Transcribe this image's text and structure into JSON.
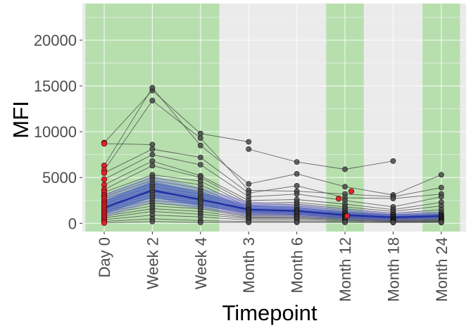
{
  "chart_data": {
    "type": "line",
    "title": "",
    "xlabel": "Timepoint",
    "ylabel": "MFI",
    "categories": [
      "Day 0",
      "Week 2",
      "Week 4",
      "Month 3",
      "Month 6",
      "Month 12",
      "Month 18",
      "Month 24"
    ],
    "ylim": [
      -900,
      24000
    ],
    "yticks": [
      0,
      5000,
      10000,
      15000,
      20000
    ],
    "grid": true,
    "legend": "none",
    "shaded_timepoints": [
      "Day 0",
      "Week 2",
      "Week 4",
      "Month 12",
      "Month 24"
    ],
    "colors": {
      "panel_background": "#ebebeb",
      "grid_major": "#ffffff",
      "grid_minor": "#f4f4f4",
      "shade": "#b7dfae",
      "individual_line": "#3a3a3a",
      "individual_point": "#4a4a4a",
      "highlight_point": "#e3242b",
      "trend_line": "#1f2fa3",
      "trend_band_inner": "#3955c4",
      "trend_band_outer": "#7f7fdc"
    },
    "trend": {
      "mean": [
        1700,
        3600,
        2600,
        1500,
        1350,
        900,
        650,
        800
      ],
      "inner_band": [
        [
          1000,
          2500
        ],
        [
          2800,
          4600
        ],
        [
          1900,
          3400
        ],
        [
          1100,
          2000
        ],
        [
          900,
          1800
        ],
        [
          550,
          1300
        ],
        [
          400,
          950
        ],
        [
          550,
          1100
        ]
      ],
      "outer_band": [
        [
          600,
          3200
        ],
        [
          2300,
          5200
        ],
        [
          1600,
          3900
        ],
        [
          800,
          2400
        ],
        [
          700,
          2100
        ],
        [
          350,
          1600
        ],
        [
          250,
          1150
        ],
        [
          400,
          1350
        ]
      ]
    },
    "subjects": [
      {
        "values": [
          8800,
          14500,
          9800,
          8900,
          null,
          null,
          null,
          null
        ]
      },
      {
        "values": [
          8700,
          8600,
          null,
          8100,
          6700,
          5900,
          6800,
          null
        ]
      },
      {
        "values": [
          6300,
          14800,
          8500,
          4300,
          5400,
          4000,
          3100,
          5300
        ]
      },
      {
        "values": [
          5800,
          13400,
          9300,
          3600,
          3500,
          3200,
          2900,
          3900
        ]
      },
      {
        "values": [
          5500,
          8100,
          7200,
          3300,
          4100,
          2800,
          2700,
          3200
        ]
      },
      {
        "values": [
          4800,
          7500,
          6400,
          2900,
          3200,
          2500,
          1800,
          2900
        ]
      },
      {
        "values": [
          4200,
          6800,
          5200,
          2500,
          2600,
          2100,
          1500,
          2300
        ]
      },
      {
        "values": [
          3700,
          6300,
          5000,
          2200,
          2300,
          1800,
          1300,
          1900
        ]
      },
      {
        "values": [
          3400,
          5300,
          4600,
          2000,
          2100,
          1600,
          1100,
          1500
        ]
      },
      {
        "values": [
          3100,
          5000,
          4200,
          1800,
          1900,
          1400,
          950,
          1200
        ]
      },
      {
        "values": [
          2900,
          4700,
          3800,
          1600,
          1700,
          1200,
          850,
          1000
        ]
      },
      {
        "values": [
          2700,
          4300,
          3500,
          1500,
          1500,
          1100,
          760,
          900
        ]
      },
      {
        "values": [
          2400,
          4000,
          3200,
          1400,
          1400,
          1000,
          680,
          820
        ]
      },
      {
        "values": [
          2200,
          3700,
          2900,
          1300,
          1300,
          900,
          600,
          750
        ]
      },
      {
        "values": [
          2000,
          3400,
          2700,
          1200,
          1200,
          820,
          530,
          680
        ]
      },
      {
        "values": [
          1800,
          3100,
          2500,
          1100,
          1100,
          750,
          470,
          620
        ]
      },
      {
        "values": [
          1600,
          2800,
          2300,
          1000,
          1000,
          680,
          420,
          560
        ]
      },
      {
        "values": [
          1400,
          2500,
          2100,
          900,
          900,
          620,
          380,
          500
        ]
      },
      {
        "values": [
          1200,
          2200,
          1800,
          800,
          800,
          560,
          340,
          440
        ]
      },
      {
        "values": [
          1000,
          1900,
          1600,
          700,
          700,
          500,
          300,
          380
        ]
      },
      {
        "values": [
          800,
          1600,
          1300,
          600,
          600,
          440,
          260,
          320
        ]
      },
      {
        "values": [
          600,
          1300,
          1000,
          500,
          500,
          380,
          220,
          260
        ]
      },
      {
        "values": [
          400,
          900,
          700,
          350,
          350,
          300,
          180,
          200
        ]
      },
      {
        "values": [
          200,
          500,
          300,
          200,
          200,
          200,
          120,
          150
        ]
      },
      {
        "values": [
          50,
          200,
          100,
          100,
          100,
          100,
          80,
          80
        ]
      }
    ],
    "highlight_points": [
      {
        "x": "Day 0",
        "y": 8800
      },
      {
        "x": "Day 0",
        "y": 8700
      },
      {
        "x": "Day 0",
        "y": 6300
      },
      {
        "x": "Day 0",
        "y": 5800
      },
      {
        "x": "Day 0",
        "y": 5500
      },
      {
        "x": "Day 0",
        "y": 4800
      },
      {
        "x": "Day 0",
        "y": 4200
      },
      {
        "x": "Day 0",
        "y": 3700
      },
      {
        "x": "Day 0",
        "y": 3400
      },
      {
        "x": "Day 0",
        "y": 3100
      },
      {
        "x": "Day 0",
        "y": 2900
      },
      {
        "x": "Day 0",
        "y": 2700
      },
      {
        "x": "Day 0",
        "y": 2400
      },
      {
        "x": "Day 0",
        "y": 2200
      },
      {
        "x": "Day 0",
        "y": 2000
      },
      {
        "x": "Day 0",
        "y": 1800
      },
      {
        "x": "Day 0",
        "y": 1600
      },
      {
        "x": "Day 0",
        "y": 1400
      },
      {
        "x": "Day 0",
        "y": 1200
      },
      {
        "x": "Day 0",
        "y": 1000
      },
      {
        "x": "Day 0",
        "y": 800
      },
      {
        "x": "Day 0",
        "y": 600
      },
      {
        "x": "Day 0",
        "y": 400
      },
      {
        "x": "Day 0",
        "y": 200
      },
      {
        "x": "Day 0",
        "y": 50
      },
      {
        "x": "Month 12",
        "y": 2700,
        "offset": -0.3
      },
      {
        "x": "Month 12",
        "y": 3500,
        "offset": 0.3
      },
      {
        "x": "Month 12",
        "y": 800,
        "offset": 0.1
      }
    ]
  }
}
